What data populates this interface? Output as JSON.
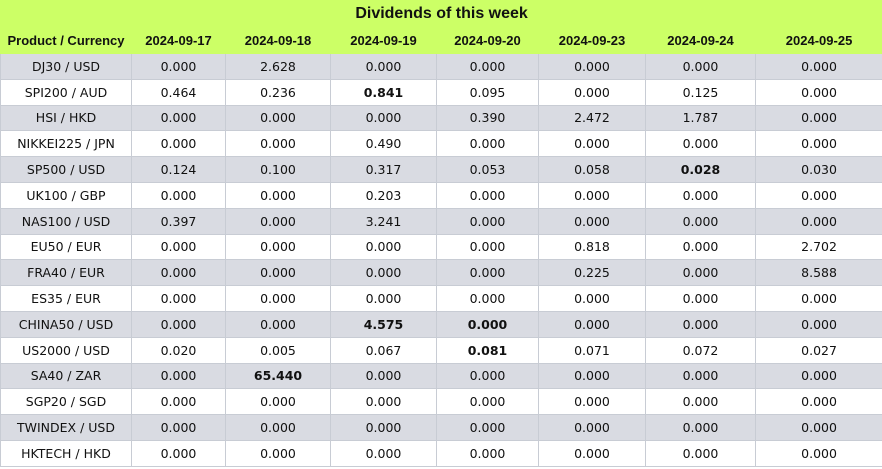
{
  "table": {
    "title": "Dividends of this week",
    "header": [
      "Product / Currency",
      "2024-09-17",
      "2024-09-18",
      "2024-09-19",
      "2024-09-20",
      "2024-09-23",
      "2024-09-24",
      "2024-09-25"
    ],
    "rows": [
      [
        "DJ30 / USD",
        "0.000",
        "2.628",
        "0.000",
        "0.000",
        "0.000",
        "0.000",
        "0.000"
      ],
      [
        "SPI200 / AUD",
        "0.464",
        "0.236",
        "0.841",
        "0.095",
        "0.000",
        "0.125",
        "0.000"
      ],
      [
        "HSI / HKD",
        "0.000",
        "0.000",
        "0.000",
        "0.390",
        "2.472",
        "1.787",
        "0.000"
      ],
      [
        "NIKKEI225 / JPN",
        "0.000",
        "0.000",
        "0.490",
        "0.000",
        "0.000",
        "0.000",
        "0.000"
      ],
      [
        "SP500 / USD",
        "0.124",
        "0.100",
        "0.317",
        "0.053",
        "0.058",
        "0.028",
        "0.030"
      ],
      [
        "UK100 / GBP",
        "0.000",
        "0.000",
        "0.203",
        "0.000",
        "0.000",
        "0.000",
        "0.000"
      ],
      [
        "NAS100 / USD",
        "0.397",
        "0.000",
        "3.241",
        "0.000",
        "0.000",
        "0.000",
        "0.000"
      ],
      [
        "EU50 / EUR",
        "0.000",
        "0.000",
        "0.000",
        "0.000",
        "0.818",
        "0.000",
        "2.702"
      ],
      [
        "FRA40 / EUR",
        "0.000",
        "0.000",
        "0.000",
        "0.000",
        "0.225",
        "0.000",
        "8.588"
      ],
      [
        "ES35 / EUR",
        "0.000",
        "0.000",
        "0.000",
        "0.000",
        "0.000",
        "0.000",
        "0.000"
      ],
      [
        "CHINA50 / USD",
        "0.000",
        "0.000",
        "4.575",
        "0.000",
        "0.000",
        "0.000",
        "0.000"
      ],
      [
        "US2000 / USD",
        "0.020",
        "0.005",
        "0.067",
        "0.081",
        "0.071",
        "0.072",
        "0.027"
      ],
      [
        "SA40 / ZAR",
        "0.000",
        "65.440",
        "0.000",
        "0.000",
        "0.000",
        "0.000",
        "0.000"
      ],
      [
        "SGP20 / SGD",
        "0.000",
        "0.000",
        "0.000",
        "0.000",
        "0.000",
        "0.000",
        "0.000"
      ],
      [
        "TWINDEX / USD",
        "0.000",
        "0.000",
        "0.000",
        "0.000",
        "0.000",
        "0.000",
        "0.000"
      ],
      [
        "HKTECH / HKD",
        "0.000",
        "0.000",
        "0.000",
        "0.000",
        "0.000",
        "0.000",
        "0.000"
      ]
    ]
  }
}
